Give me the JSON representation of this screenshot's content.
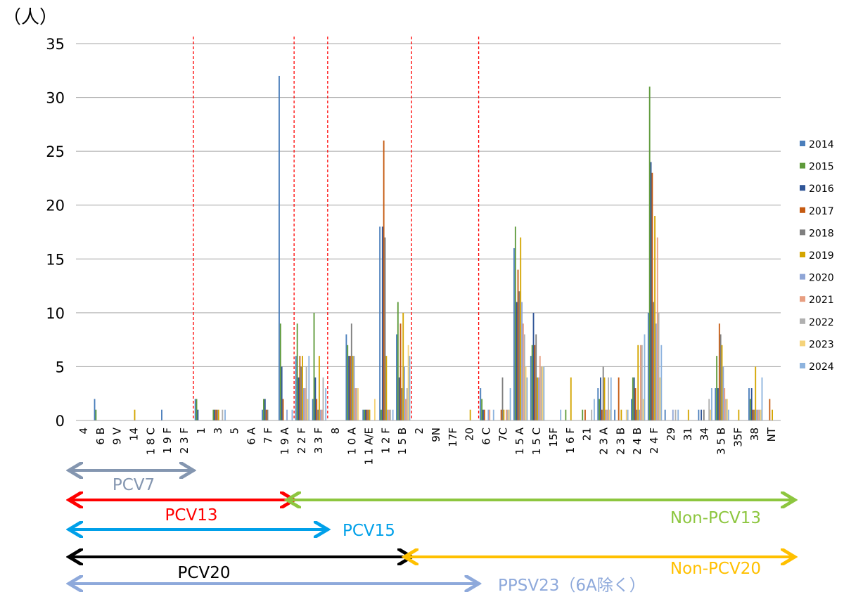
{
  "chart_data": {
    "type": "bar",
    "y_unit_label": "（人）",
    "ylim": [
      0,
      35
    ],
    "yticks": [
      0,
      5,
      10,
      15,
      20,
      25,
      30,
      35
    ],
    "grid": true,
    "legend_position": "right",
    "categories": [
      "4",
      "6 B",
      "9 V",
      "14",
      "1 8 C",
      "1 9 F",
      "2 3 F",
      "1",
      "3",
      "5",
      "6 A",
      "7 F",
      "1 9 A",
      "2 2 F",
      "3 3 F",
      "8",
      "1 0 A",
      "1 1 A/E",
      "1 2 F",
      "1 5 B",
      "2",
      "9N",
      "17F",
      "20",
      "6 C",
      "7C",
      "1 5 A",
      "1 5 C",
      "15F",
      "1 6 F",
      "21",
      "2 3 A",
      "2 3 B",
      "2 4 B",
      "2 4 F",
      "29",
      "31",
      "34",
      "3 5 B",
      "35F",
      "38",
      "NT"
    ],
    "separators_after": [
      "2 3 F",
      "1 9 A",
      "3 3 F",
      "1 5 B",
      "20"
    ],
    "series": [
      {
        "name": "2014",
        "color": "#4A7EBB",
        "values": [
          0,
          2,
          0,
          0,
          0,
          1,
          0,
          2,
          0,
          0,
          0,
          1,
          32,
          6,
          2,
          0,
          8,
          1,
          18,
          8,
          0,
          0,
          0,
          0,
          3,
          0,
          16,
          6,
          0,
          0,
          0,
          3,
          1,
          2,
          10,
          1,
          0,
          1,
          3,
          0,
          3,
          0
        ]
      },
      {
        "name": "2015",
        "color": "#5E9A3A",
        "values": [
          0,
          1,
          0,
          0,
          0,
          0,
          0,
          2,
          1,
          0,
          0,
          2,
          9,
          9,
          10,
          0,
          7,
          1,
          1,
          11,
          0,
          0,
          0,
          0,
          2,
          0,
          18,
          7,
          0,
          1,
          1,
          2,
          0,
          4,
          31,
          0,
          0,
          0,
          6,
          0,
          2,
          0
        ]
      },
      {
        "name": "2016",
        "color": "#2F5597",
        "values": [
          0,
          0,
          0,
          0,
          0,
          0,
          0,
          1,
          1,
          0,
          0,
          2,
          5,
          4,
          4,
          0,
          6,
          1,
          18,
          4,
          0,
          0,
          0,
          0,
          1,
          0,
          11,
          10,
          0,
          0,
          0,
          4,
          0,
          4,
          24,
          0,
          0,
          1,
          3,
          0,
          3,
          0
        ]
      },
      {
        "name": "2017",
        "color": "#C55A11",
        "values": [
          0,
          0,
          0,
          0,
          0,
          0,
          0,
          0,
          1,
          0,
          0,
          1,
          2,
          6,
          2,
          0,
          6,
          1,
          26,
          9,
          0,
          0,
          0,
          0,
          1,
          1,
          14,
          7,
          0,
          0,
          1,
          1,
          4,
          3,
          23,
          0,
          0,
          0,
          9,
          0,
          1,
          2
        ]
      },
      {
        "name": "2018",
        "color": "#7F7F7F",
        "values": [
          0,
          0,
          0,
          0,
          0,
          0,
          0,
          0,
          1,
          0,
          0,
          1,
          0,
          5,
          1,
          0,
          9,
          1,
          17,
          3,
          0,
          0,
          0,
          0,
          0,
          4,
          12,
          8,
          0,
          0,
          0,
          5,
          0,
          1,
          11,
          0,
          0,
          1,
          8,
          0,
          1,
          0
        ]
      },
      {
        "name": "2019",
        "color": "#D4A500",
        "values": [
          0,
          0,
          0,
          1,
          0,
          0,
          0,
          0,
          1,
          0,
          0,
          0,
          0,
          6,
          6,
          0,
          6,
          1,
          6,
          10,
          0,
          0,
          0,
          1,
          0,
          1,
          17,
          4,
          0,
          4,
          0,
          4,
          1,
          7,
          19,
          0,
          1,
          0,
          7,
          1,
          5,
          1
        ]
      },
      {
        "name": "2020",
        "color": "#8FA5D6",
        "values": [
          0,
          0,
          0,
          0,
          0,
          0,
          0,
          0,
          0,
          0,
          0,
          0,
          1,
          3,
          1,
          0,
          6,
          0,
          1,
          5,
          0,
          0,
          0,
          0,
          1,
          0,
          11,
          4,
          0,
          0,
          0,
          1,
          0,
          1,
          9,
          1,
          0,
          0,
          5,
          0,
          1,
          0
        ]
      },
      {
        "name": "2021",
        "color": "#E89E81",
        "values": [
          0,
          0,
          0,
          0,
          0,
          0,
          0,
          0,
          0,
          0,
          0,
          0,
          0,
          3,
          1,
          0,
          3,
          0,
          1,
          2,
          0,
          0,
          0,
          0,
          1,
          1,
          9,
          6,
          0,
          0,
          0,
          1,
          0,
          7,
          17,
          0,
          0,
          0,
          3,
          0,
          1,
          0
        ]
      },
      {
        "name": "2022",
        "color": "#B0B0B0",
        "values": [
          0,
          0,
          0,
          0,
          0,
          0,
          0,
          0,
          1,
          0,
          0,
          0,
          0,
          5,
          4,
          0,
          3,
          0,
          1,
          3,
          0,
          0,
          0,
          0,
          0,
          1,
          8,
          5,
          0,
          0,
          1,
          4,
          0,
          7,
          10,
          1,
          0,
          2,
          2,
          0,
          1,
          0
        ]
      },
      {
        "name": "2023",
        "color": "#F5D37A",
        "values": [
          0,
          0,
          0,
          0,
          0,
          0,
          0,
          0,
          0,
          0,
          0,
          0,
          0,
          2,
          0,
          0,
          3,
          2,
          0,
          7,
          0,
          0,
          0,
          0,
          0,
          1,
          5,
          5,
          0,
          0,
          0,
          1,
          1,
          2,
          4,
          0,
          0,
          1,
          2,
          0,
          1,
          0
        ]
      },
      {
        "name": "2024",
        "color": "#8DB3DE",
        "values": [
          0,
          0,
          0,
          0,
          0,
          0,
          0,
          0,
          1,
          0,
          0,
          0,
          1,
          6,
          3,
          0,
          0,
          0,
          1,
          6,
          0,
          0,
          0,
          0,
          1,
          3,
          4,
          5,
          1,
          0,
          2,
          4,
          1,
          8,
          7,
          1,
          0,
          3,
          1,
          0,
          4,
          0
        ]
      }
    ],
    "ranges": [
      {
        "label": "PCV7",
        "color": "#8496B0",
        "from": "4",
        "to": "2 3 F",
        "arrow_start": true,
        "arrow_end": true
      },
      {
        "label": "PCV13",
        "color": "#FF0000",
        "from": "4",
        "to": "1 9 A",
        "arrow_start": true,
        "arrow_end": true
      },
      {
        "label": "Non-PCV13",
        "color": "#8DC63F",
        "from": "2 2 F",
        "to": "NT",
        "arrow_start": true,
        "arrow_end": true
      },
      {
        "label": "PCV15",
        "color": "#00A0E9",
        "from": "4",
        "to": "3 3 F",
        "arrow_start": true,
        "arrow_end": true
      },
      {
        "label": "PCV20",
        "color": "#000000",
        "from": "4",
        "to": "1 5 B",
        "arrow_start": true,
        "arrow_end": true
      },
      {
        "label": "Non-PCV20",
        "color": "#FFC000",
        "from": "2",
        "to": "NT",
        "arrow_start": true,
        "arrow_end": true
      },
      {
        "label": "PPSV23（6A除く）",
        "color": "#8EA9DB",
        "from": "4",
        "to": "20",
        "arrow_start": true,
        "arrow_end": true
      }
    ]
  }
}
